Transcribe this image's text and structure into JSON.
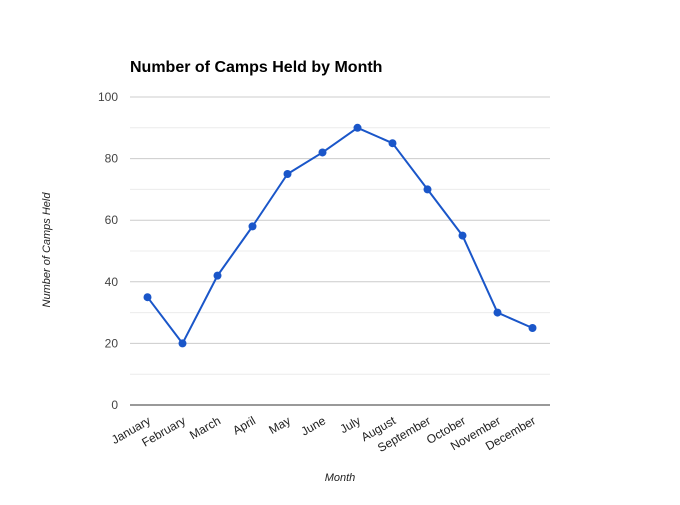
{
  "chart_data": {
    "type": "line",
    "title": "Number of Camps Held by Month",
    "xlabel": "Month",
    "ylabel": "Number of Camps Held",
    "categories": [
      "January",
      "February",
      "March",
      "April",
      "May",
      "June",
      "July",
      "August",
      "September",
      "October",
      "November",
      "December"
    ],
    "series": [
      {
        "values": [
          35,
          20,
          42,
          58,
          75,
          82,
          90,
          85,
          70,
          55,
          30,
          25
        ],
        "color": "#1a56c9"
      }
    ],
    "ylim": [
      0,
      100
    ],
    "yticks": [
      0,
      20,
      40,
      60,
      80,
      100
    ],
    "minor_gridlines": true,
    "grid": true,
    "legend": "none"
  }
}
